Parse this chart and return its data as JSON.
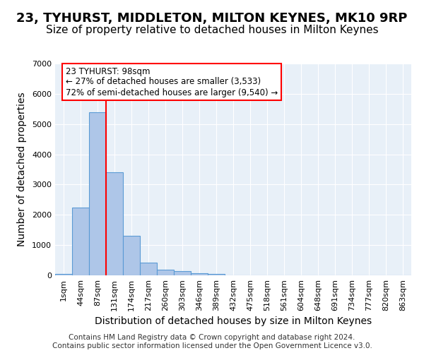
{
  "title": "23, TYHURST, MIDDLETON, MILTON KEYNES, MK10 9RP",
  "subtitle": "Size of property relative to detached houses in Milton Keynes",
  "xlabel": "Distribution of detached houses by size in Milton Keynes",
  "ylabel": "Number of detached properties",
  "bin_labels": [
    "1sqm",
    "44sqm",
    "87sqm",
    "131sqm",
    "174sqm",
    "217sqm",
    "260sqm",
    "303sqm",
    "346sqm",
    "389sqm",
    "432sqm",
    "475sqm",
    "518sqm",
    "561sqm",
    "604sqm",
    "648sqm",
    "691sqm",
    "734sqm",
    "777sqm",
    "820sqm",
    "863sqm"
  ],
  "bar_heights": [
    50,
    2250,
    5400,
    3400,
    1300,
    430,
    190,
    145,
    80,
    45,
    0,
    0,
    0,
    0,
    0,
    0,
    0,
    0,
    0,
    0,
    0
  ],
  "bar_color": "#aec6e8",
  "bar_edge_color": "#5b9bd5",
  "red_line_bin": 2,
  "ylim": [
    0,
    7000
  ],
  "yticks": [
    0,
    1000,
    2000,
    3000,
    4000,
    5000,
    6000,
    7000
  ],
  "annotation_text": "23 TYHURST: 98sqm\n← 27% of detached houses are smaller (3,533)\n72% of semi-detached houses are larger (9,540) →",
  "footer_line1": "Contains HM Land Registry data © Crown copyright and database right 2024.",
  "footer_line2": "Contains public sector information licensed under the Open Government Licence v3.0.",
  "background_color": "#e8f0f8",
  "grid_color": "#ffffff",
  "title_fontsize": 13,
  "subtitle_fontsize": 11,
  "axis_label_fontsize": 10,
  "tick_fontsize": 8,
  "footer_fontsize": 7.5
}
